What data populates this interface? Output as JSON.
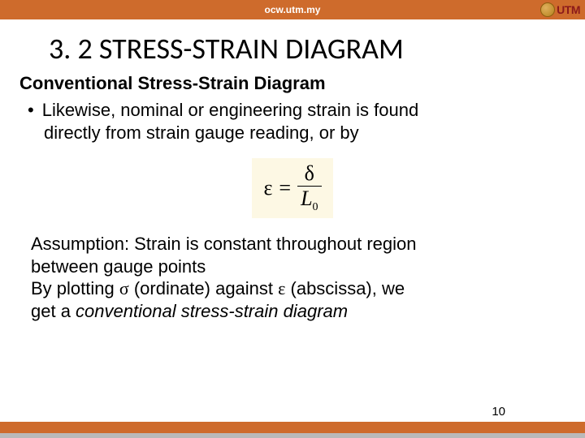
{
  "header": {
    "site": "ocw.utm.my",
    "logo_text": "UTM"
  },
  "title": "3. 2 STRESS-STRAIN DIAGRAM",
  "subheading": "Conventional Stress-Strain Diagram",
  "bullet": {
    "marker": "•",
    "line1": "Likewise, nominal or engineering strain is found",
    "line2": "directly from strain gauge reading, or by"
  },
  "formula": {
    "lhs": "ε",
    "eq": "=",
    "num": "δ",
    "den_L": "L",
    "den_sub": "0"
  },
  "para": {
    "l1a": "Assumption: Strain is constant throughout region",
    "l2a": "between gauge points",
    "l3_pre": "By plotting ",
    "l3_sigma": "σ",
    "l3_mid": " (ordinate) against ",
    "l3_eps": "ε",
    "l3_post": " (abscissa), we",
    "l4_pre": "get a ",
    "l4_ital": "conventional stress-strain diagram"
  },
  "page_number": "10"
}
